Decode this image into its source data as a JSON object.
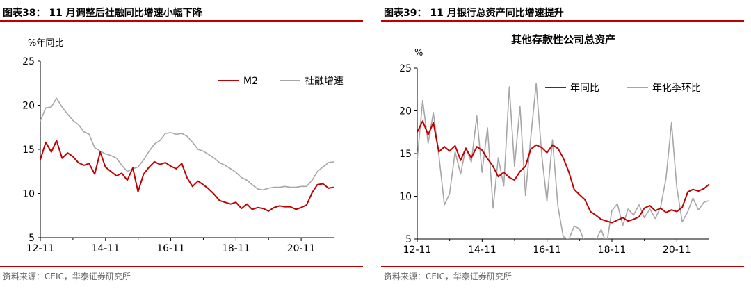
{
  "left": {
    "figure_title": "图表38： 11 月调整后社融同比增速小幅下降",
    "source": "资料来源：CEIC，华泰证券研究所",
    "colors": {
      "m2": "#c00000",
      "sf": "#a6a6a6"
    },
    "chart_data": {
      "type": "line",
      "title": "",
      "unit_label": "%年同比",
      "xlabel": "",
      "ylabel": "",
      "x_ticks": [
        "12-11",
        "14-11",
        "16-11",
        "18-11",
        "20-11"
      ],
      "y_ticks": [
        "5",
        "10",
        "15",
        "20",
        "25"
      ],
      "ylim": [
        5,
        25
      ],
      "xlim": [
        2011.833,
        2020.833
      ],
      "grid": false,
      "legend": "top-right",
      "series": [
        {
          "name": "M2",
          "color": "#c00000",
          "x": [
            2011.83,
            2012.0,
            2012.17,
            2012.33,
            2012.5,
            2012.67,
            2012.83,
            2013.0,
            2013.17,
            2013.33,
            2013.5,
            2013.67,
            2013.83,
            2014.0,
            2014.17,
            2014.33,
            2014.5,
            2014.67,
            2014.83,
            2015.0,
            2015.17,
            2015.33,
            2015.5,
            2015.67,
            2015.83,
            2016.0,
            2016.17,
            2016.33,
            2016.5,
            2016.67,
            2016.83,
            2017.0,
            2017.17,
            2017.33,
            2017.5,
            2017.67,
            2017.83,
            2018.0,
            2018.17,
            2018.33,
            2018.5,
            2018.67,
            2018.83,
            2019.0,
            2019.17,
            2019.33,
            2019.5,
            2019.67,
            2019.83,
            2020.0,
            2020.17,
            2020.33,
            2020.5,
            2020.67,
            2020.83
          ],
          "y": [
            13.8,
            15.8,
            14.7,
            16.0,
            14.0,
            14.6,
            14.2,
            13.5,
            13.2,
            13.4,
            12.2,
            14.7,
            13.0,
            12.5,
            12.0,
            12.3,
            11.5,
            12.9,
            10.2,
            12.2,
            13.0,
            13.6,
            13.3,
            13.5,
            13.1,
            12.8,
            13.4,
            11.8,
            10.8,
            11.4,
            11.0,
            10.5,
            9.9,
            9.2,
            9.0,
            8.8,
            9.0,
            8.3,
            8.8,
            8.2,
            8.4,
            8.3,
            8.0,
            8.4,
            8.6,
            8.5,
            8.5,
            8.2,
            8.4,
            8.7,
            10.1,
            11.0,
            11.1,
            10.6,
            10.7
          ]
        },
        {
          "name": "社融增速",
          "color": "#a6a6a6",
          "x": [
            2011.83,
            2012.0,
            2012.17,
            2012.33,
            2012.5,
            2012.67,
            2012.83,
            2013.0,
            2013.17,
            2013.33,
            2013.5,
            2013.67,
            2013.83,
            2014.0,
            2014.17,
            2014.33,
            2014.5,
            2014.67,
            2014.83,
            2015.0,
            2015.17,
            2015.33,
            2015.5,
            2015.67,
            2015.83,
            2016.0,
            2016.17,
            2016.33,
            2016.5,
            2016.67,
            2016.83,
            2017.0,
            2017.17,
            2017.33,
            2017.5,
            2017.67,
            2017.83,
            2018.0,
            2018.17,
            2018.33,
            2018.5,
            2018.67,
            2018.83,
            2019.0,
            2019.17,
            2019.33,
            2019.5,
            2019.67,
            2019.83,
            2020.0,
            2020.17,
            2020.33,
            2020.5,
            2020.67,
            2020.83
          ],
          "y": [
            18.2,
            19.7,
            19.8,
            20.8,
            19.8,
            19.0,
            18.3,
            17.8,
            17.0,
            16.7,
            15.2,
            14.8,
            14.5,
            14.3,
            14.0,
            13.2,
            12.5,
            12.8,
            13.0,
            13.8,
            14.8,
            15.6,
            16.0,
            16.8,
            16.9,
            16.7,
            16.8,
            16.5,
            15.8,
            15.0,
            14.8,
            14.4,
            14.0,
            13.5,
            13.2,
            12.8,
            12.4,
            11.8,
            11.5,
            11.0,
            10.5,
            10.4,
            10.6,
            10.7,
            10.7,
            10.8,
            10.7,
            10.7,
            10.8,
            10.8,
            11.5,
            12.5,
            13.0,
            13.5,
            13.6
          ]
        }
      ]
    }
  },
  "right": {
    "figure_title": "图表39： 11 月银行总资产同比增速提升",
    "source": "资料来源：CEIC，华泰证券研究所",
    "colors": {
      "yoy": "#c00000",
      "qoq": "#a6a6a6"
    },
    "chart_data": {
      "type": "line",
      "title": "其他存款性公司总资产",
      "unit_label": "%",
      "xlabel": "",
      "ylabel": "",
      "x_ticks": [
        "12-11",
        "14-11",
        "16-11",
        "18-11",
        "20-11"
      ],
      "y_ticks": [
        "5",
        "10",
        "15",
        "20",
        "25"
      ],
      "ylim": [
        5,
        25
      ],
      "xlim": [
        2011.833,
        2020.833
      ],
      "grid": false,
      "legend": "top-right",
      "series": [
        {
          "name": "年同比",
          "color": "#c00000",
          "x": [
            2011.83,
            2012.0,
            2012.17,
            2012.33,
            2012.5,
            2012.67,
            2012.83,
            2013.0,
            2013.17,
            2013.33,
            2013.5,
            2013.67,
            2013.83,
            2014.0,
            2014.17,
            2014.33,
            2014.5,
            2014.67,
            2014.83,
            2015.0,
            2015.17,
            2015.33,
            2015.5,
            2015.67,
            2015.83,
            2016.0,
            2016.17,
            2016.33,
            2016.5,
            2016.67,
            2016.83,
            2017.0,
            2017.17,
            2017.33,
            2017.5,
            2017.67,
            2017.83,
            2018.0,
            2018.17,
            2018.33,
            2018.5,
            2018.67,
            2018.83,
            2019.0,
            2019.17,
            2019.33,
            2019.5,
            2019.67,
            2019.83,
            2020.0,
            2020.17,
            2020.33,
            2020.5,
            2020.67,
            2020.83
          ],
          "y": [
            17.5,
            18.8,
            17.2,
            18.6,
            15.2,
            15.8,
            15.3,
            15.9,
            14.2,
            15.6,
            14.5,
            15.8,
            15.4,
            14.4,
            13.5,
            12.3,
            12.8,
            12.2,
            11.9,
            12.9,
            13.5,
            15.5,
            16.0,
            15.7,
            15.1,
            16.0,
            15.6,
            14.5,
            12.9,
            10.8,
            10.2,
            9.6,
            8.2,
            7.8,
            7.3,
            7.1,
            6.9,
            7.2,
            7.5,
            7.1,
            7.3,
            7.6,
            8.6,
            8.9,
            8.3,
            8.6,
            8.1,
            8.4,
            8.2,
            8.7,
            10.5,
            10.8,
            10.6,
            10.9,
            11.4
          ]
        },
        {
          "name": "年化季环比",
          "color": "#a6a6a6",
          "x": [
            2011.83,
            2012.0,
            2012.17,
            2012.33,
            2012.5,
            2012.67,
            2012.83,
            2013.0,
            2013.17,
            2013.33,
            2013.5,
            2013.67,
            2013.83,
            2014.0,
            2014.17,
            2014.33,
            2014.5,
            2014.67,
            2014.83,
            2015.0,
            2015.17,
            2015.33,
            2015.5,
            2015.67,
            2015.83,
            2016.0,
            2016.17,
            2016.33,
            2016.5,
            2016.67,
            2016.83,
            2017.0,
            2017.17,
            2017.33,
            2017.5,
            2017.67,
            2017.83,
            2018.0,
            2018.17,
            2018.33,
            2018.5,
            2018.67,
            2018.83,
            2019.0,
            2019.17,
            2019.33,
            2019.5,
            2019.67,
            2019.83,
            2020.0,
            2020.17,
            2020.33,
            2020.5,
            2020.67,
            2020.83
          ],
          "y": [
            14.2,
            21.2,
            16.2,
            19.8,
            14.8,
            9.0,
            10.3,
            15.2,
            12.6,
            15.7,
            14.0,
            19.4,
            12.8,
            18.0,
            8.6,
            14.5,
            11.2,
            22.8,
            13.5,
            20.5,
            10.1,
            16.8,
            23.2,
            14.8,
            9.4,
            16.6,
            8.8,
            5.3,
            4.9,
            6.5,
            6.2,
            4.6,
            3.9,
            4.8,
            6.1,
            4.4,
            8.3,
            9.1,
            6.6,
            8.5,
            7.8,
            9.0,
            7.5,
            8.5,
            7.4,
            8.7,
            12.1,
            18.6,
            11.1,
            7.0,
            8.2,
            9.8,
            8.4,
            9.3,
            9.5
          ]
        }
      ]
    }
  }
}
